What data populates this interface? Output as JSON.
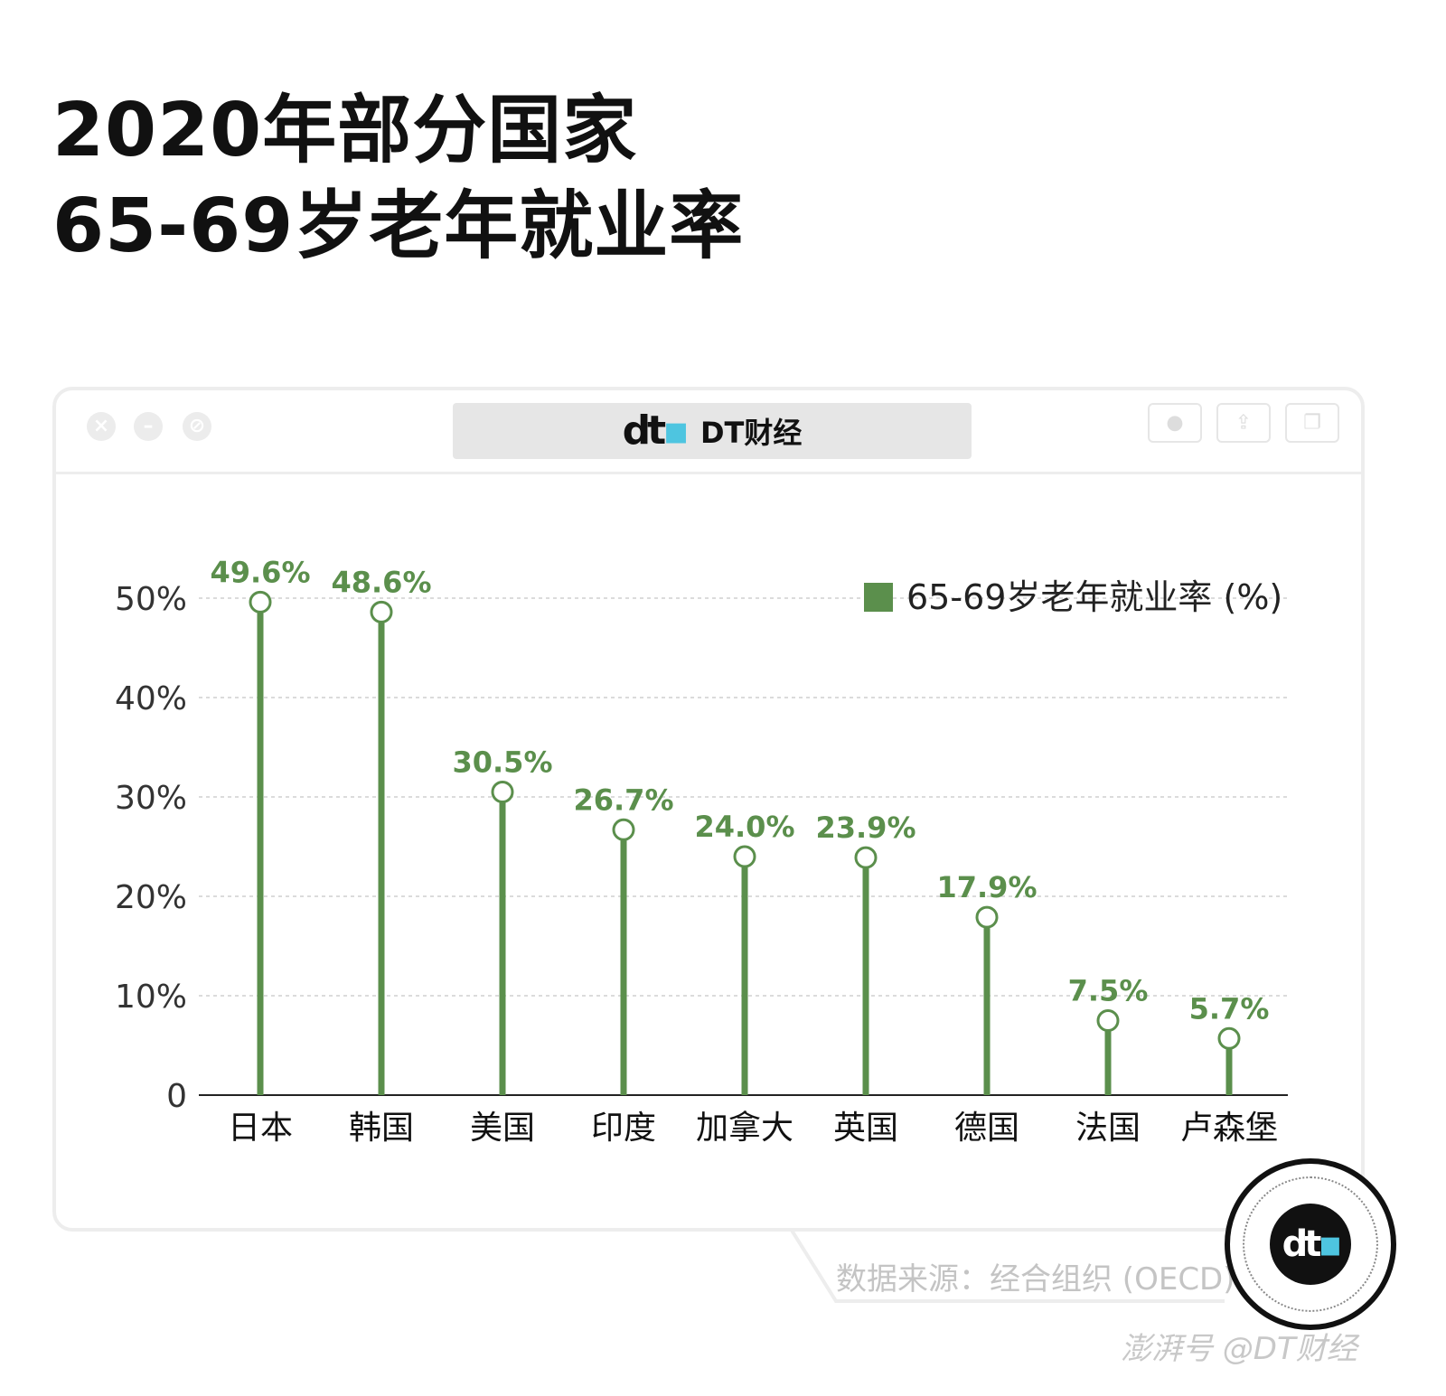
{
  "title": {
    "line1": "2020年部分国家",
    "line2": "65-69岁老年就业率"
  },
  "window": {
    "tab_label": "DT财经",
    "logo_text": "dt"
  },
  "source": "数据来源：经合组织 (OECD)",
  "badge": {
    "logo_text": "dt"
  },
  "footer": "澎湃号 @DT财经",
  "colors": {
    "series": "#5b8f4c",
    "grid": "#cfcfcf",
    "axis": "#222222",
    "tick": "#333333"
  },
  "chart_data": {
    "type": "bar",
    "style": "lollipop",
    "title": "",
    "xlabel": "",
    "ylabel": "",
    "categories": [
      "日本",
      "韩国",
      "美国",
      "印度",
      "加拿大",
      "英国",
      "德国",
      "法国",
      "卢森堡"
    ],
    "series": [
      {
        "name": "65-69岁老年就业率 (%)",
        "values": [
          49.6,
          48.6,
          30.5,
          26.7,
          24.0,
          23.9,
          17.9,
          7.5,
          5.7
        ]
      }
    ],
    "data_labels": [
      "49.6%",
      "48.6%",
      "30.5%",
      "26.7%",
      "24.0%",
      "23.9%",
      "17.9%",
      "7.5%",
      "5.7%"
    ],
    "yticks": [
      0,
      10,
      20,
      30,
      40,
      50
    ],
    "ytick_labels": [
      "0",
      "10%",
      "20%",
      "30%",
      "40%",
      "50%"
    ],
    "ylim": [
      0,
      50
    ],
    "grid": true,
    "legend_position": "top-right"
  }
}
